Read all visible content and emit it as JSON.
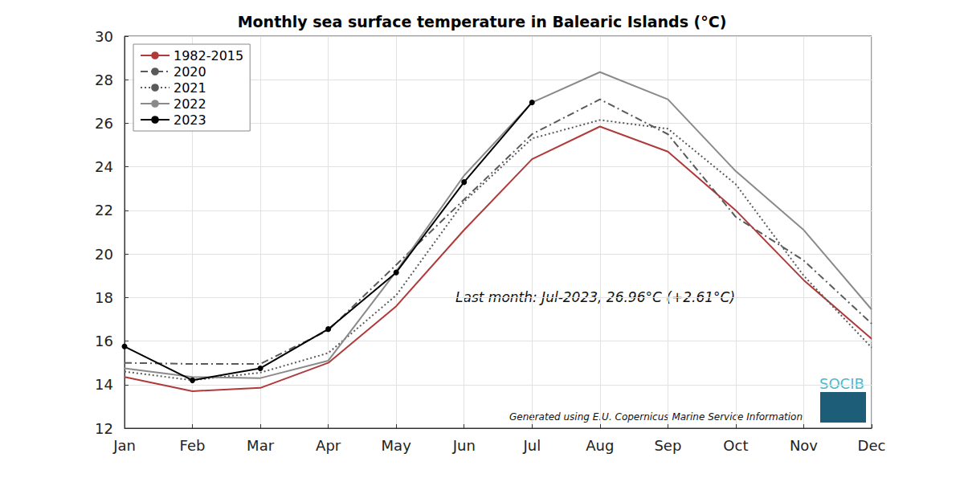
{
  "chart_data": {
    "type": "line",
    "title": "Monthly sea surface temperature in Balearic Islands (°C)",
    "categories": [
      "Jan",
      "Feb",
      "Mar",
      "Apr",
      "May",
      "Jun",
      "Jul",
      "Aug",
      "Sep",
      "Oct",
      "Nov",
      "Dec"
    ],
    "series": [
      {
        "name": "1982-2015",
        "color": "#b03a3a",
        "line_style": "solid",
        "values": [
          14.35,
          13.7,
          13.85,
          15.0,
          17.6,
          21.1,
          24.35,
          25.85,
          24.7,
          22.0,
          18.8,
          16.1
        ]
      },
      {
        "name": "2020",
        "color": "#5a5a5a",
        "line_style": "dashdot",
        "values": [
          15.0,
          14.95,
          14.95,
          16.5,
          19.5,
          22.5,
          25.5,
          27.1,
          25.5,
          21.7,
          19.7,
          16.8
        ]
      },
      {
        "name": "2021",
        "color": "#5a5a5a",
        "line_style": "dotted",
        "values": [
          14.6,
          14.2,
          14.55,
          15.45,
          18.1,
          22.4,
          25.3,
          26.15,
          25.75,
          23.2,
          19.0,
          15.7
        ]
      },
      {
        "name": "2022",
        "color": "#8a8a8a",
        "line_style": "solid",
        "values": [
          14.75,
          14.35,
          14.3,
          15.1,
          19.2,
          23.6,
          26.95,
          28.35,
          27.1,
          23.8,
          21.1,
          17.45
        ]
      },
      {
        "name": "2023",
        "color": "#000000",
        "line_style": "solid",
        "marker": "circle",
        "values": [
          15.75,
          14.2,
          14.75,
          16.55,
          19.15,
          23.3,
          26.96,
          null,
          null,
          null,
          null,
          null
        ]
      }
    ],
    "ylim": [
      12,
      30
    ],
    "yticks": [
      12,
      14,
      16,
      18,
      20,
      22,
      24,
      26,
      28,
      30
    ],
    "grid": true,
    "legend": "top-left",
    "annotations": [
      "Last month: Jul-2023, 26.96°C (+2.61°C)",
      "Generated using E.U. Copernicus Marine Service Information",
      "SOCIB"
    ]
  }
}
